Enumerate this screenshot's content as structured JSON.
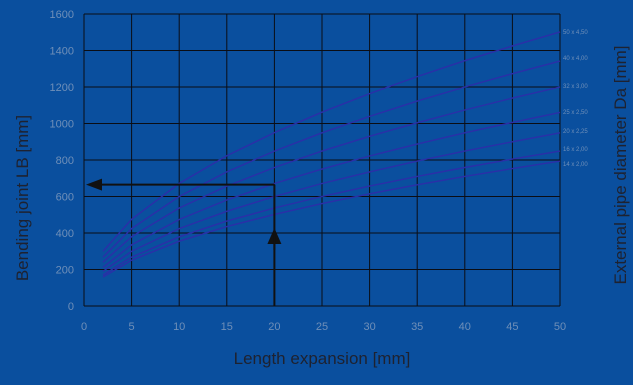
{
  "chart_data": {
    "type": "line",
    "title": "",
    "xlabel": "Length expansion [mm]",
    "ylabel": "Bending joint LB [mm]",
    "y2label": "External pipe diameter Da [mm]",
    "xlim": [
      0,
      50
    ],
    "ylim": [
      0,
      1600
    ],
    "x_ticks": [
      0,
      5,
      10,
      15,
      20,
      25,
      30,
      35,
      40,
      45,
      50
    ],
    "y_ticks": [
      0,
      200,
      400,
      600,
      800,
      1000,
      1200,
      1400,
      1600
    ],
    "x_tick_labels": [
      "0",
      "5",
      "10",
      "15",
      "20",
      "25",
      "30",
      "35",
      "40",
      "45",
      "50"
    ],
    "y_tick_labels": [
      "0",
      "200",
      "400",
      "600",
      "800",
      "1000",
      "1200",
      "1400",
      "1600"
    ],
    "grid": true,
    "legend": "right-edge labels",
    "series_color": "#2b2fa8",
    "x": [
      2,
      5,
      10,
      15,
      20,
      25,
      30,
      35,
      40,
      45,
      50
    ],
    "series": [
      {
        "name": "50 x 4,50",
        "values": [
          300,
          475,
          672,
          823,
          950,
          1062,
          1164,
          1257,
          1344,
          1425,
          1502
        ]
      },
      {
        "name": "40 x 4,00",
        "values": [
          268,
          424,
          600,
          735,
          849,
          949,
          1039,
          1123,
          1200,
          1273,
          1342
        ]
      },
      {
        "name": "32 x 3,00",
        "values": [
          240,
          380,
          537,
          657,
          759,
          849,
          930,
          1004,
          1074,
          1139,
          1200
        ]
      },
      {
        "name": "25 x 2,50",
        "values": [
          212,
          335,
          474,
          581,
          671,
          750,
          822,
          887,
          949,
          1006,
          1061
        ]
      },
      {
        "name": "20 x 2,25",
        "values": [
          190,
          300,
          424,
          519,
          600,
          671,
          735,
          794,
          849,
          900,
          949
        ]
      },
      {
        "name": "16 x 2,00",
        "values": [
          170,
          268,
          379,
          465,
          537,
          600,
          657,
          710,
          759,
          805,
          849
        ]
      },
      {
        "name": "14 x 2,00",
        "values": [
          159,
          251,
          355,
          435,
          502,
          561,
          615,
          664,
          710,
          753,
          794
        ]
      }
    ],
    "annotation": {
      "from_x": 20,
      "at_y": 665,
      "to_x": 0
    }
  }
}
